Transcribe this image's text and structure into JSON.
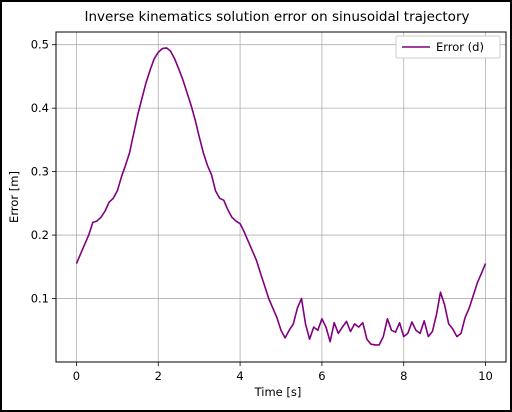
{
  "chart_data": {
    "type": "line",
    "title": "Inverse kinematics solution error on sinusoidal trajectory",
    "xlabel": "Time [s]",
    "ylabel": "Error [m]",
    "xlim": [
      -0.5,
      10.5
    ],
    "ylim": [
      0.0,
      0.52
    ],
    "xticks": [
      0,
      2,
      4,
      6,
      8,
      10
    ],
    "xtick_labels": [
      "0",
      "2",
      "4",
      "6",
      "8",
      "10"
    ],
    "yticks": [
      0.1,
      0.2,
      0.3,
      0.4,
      0.5
    ],
    "ytick_labels": [
      "0.1",
      "0.2",
      "0.3",
      "0.4",
      "0.5"
    ],
    "grid": true,
    "legend_position": "top-right",
    "series": [
      {
        "name": "Error (d)",
        "color": "#800080",
        "x": [
          0,
          0.1,
          0.2,
          0.3,
          0.4,
          0.5,
          0.6,
          0.7,
          0.8,
          0.9,
          1.0,
          1.1,
          1.2,
          1.3,
          1.4,
          1.5,
          1.6,
          1.7,
          1.8,
          1.9,
          2.0,
          2.1,
          2.2,
          2.3,
          2.4,
          2.5,
          2.6,
          2.7,
          2.8,
          2.9,
          3.0,
          3.1,
          3.2,
          3.3,
          3.4,
          3.5,
          3.6,
          3.7,
          3.8,
          3.9,
          4.0,
          4.1,
          4.2,
          4.3,
          4.4,
          4.5,
          4.6,
          4.7,
          4.8,
          4.9,
          5.0,
          5.1,
          5.2,
          5.3,
          5.4,
          5.5,
          5.6,
          5.7,
          5.8,
          5.9,
          6.0,
          6.1,
          6.2,
          6.3,
          6.4,
          6.5,
          6.6,
          6.7,
          6.8,
          6.9,
          7.0,
          7.1,
          7.2,
          7.3,
          7.4,
          7.5,
          7.6,
          7.7,
          7.8,
          7.9,
          8.0,
          8.1,
          8.2,
          8.3,
          8.4,
          8.5,
          8.6,
          8.7,
          8.8,
          8.9,
          9.0,
          9.1,
          9.2,
          9.3,
          9.4,
          9.5,
          9.6,
          9.7,
          9.8,
          9.9,
          10.0
        ],
        "y": [
          0.155,
          0.17,
          0.185,
          0.2,
          0.22,
          0.222,
          0.228,
          0.238,
          0.252,
          0.258,
          0.27,
          0.292,
          0.31,
          0.33,
          0.36,
          0.39,
          0.415,
          0.44,
          0.46,
          0.478,
          0.488,
          0.494,
          0.495,
          0.49,
          0.478,
          0.462,
          0.445,
          0.425,
          0.405,
          0.382,
          0.355,
          0.33,
          0.31,
          0.295,
          0.27,
          0.258,
          0.255,
          0.24,
          0.228,
          0.222,
          0.218,
          0.205,
          0.19,
          0.175,
          0.16,
          0.14,
          0.12,
          0.1,
          0.085,
          0.07,
          0.05,
          0.038,
          0.05,
          0.06,
          0.085,
          0.1,
          0.06,
          0.036,
          0.055,
          0.05,
          0.068,
          0.055,
          0.032,
          0.062,
          0.045,
          0.055,
          0.064,
          0.048,
          0.06,
          0.055,
          0.062,
          0.036,
          0.028,
          0.027,
          0.027,
          0.04,
          0.068,
          0.05,
          0.047,
          0.062,
          0.04,
          0.045,
          0.063,
          0.05,
          0.045,
          0.065,
          0.04,
          0.048,
          0.075,
          0.11,
          0.09,
          0.06,
          0.052,
          0.04,
          0.045,
          0.07,
          0.085,
          0.105,
          0.125,
          0.14,
          0.155
        ]
      }
    ]
  }
}
